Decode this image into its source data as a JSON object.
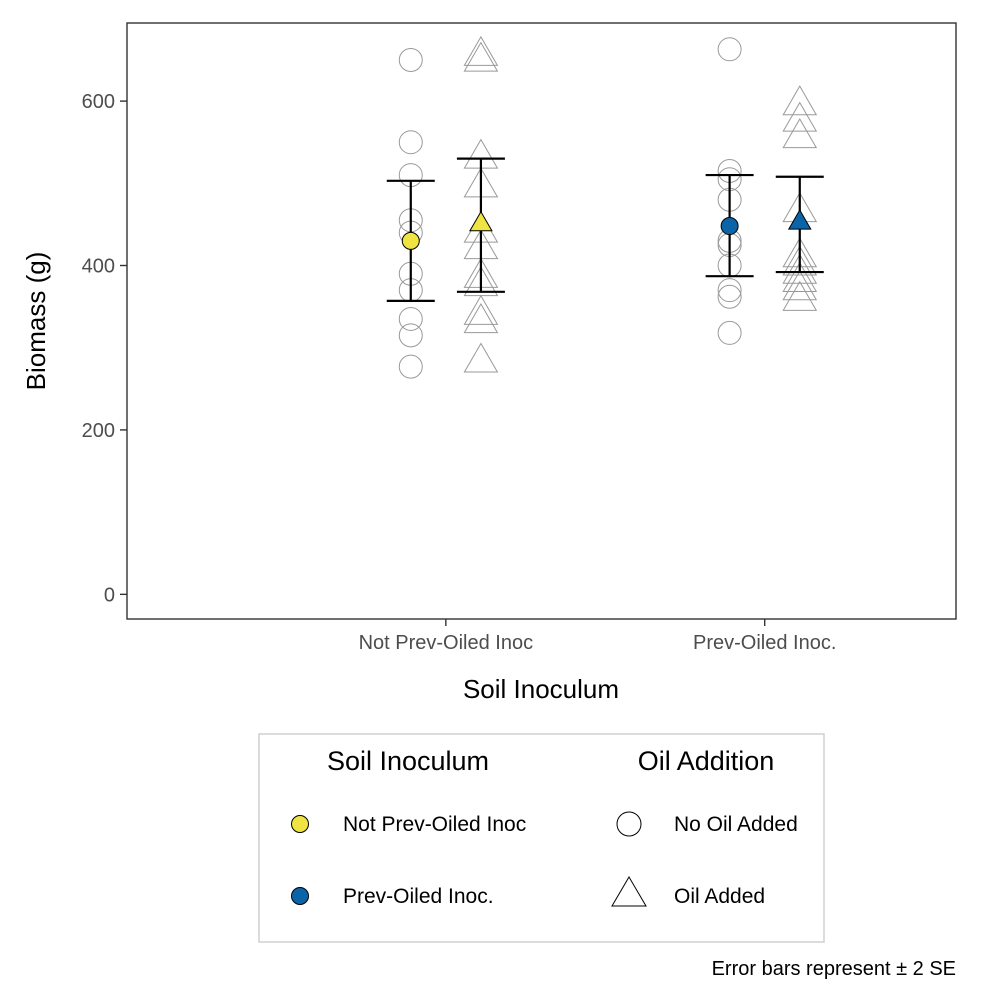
{
  "chart_data": {
    "type": "scatter",
    "xlabel": "Soil Inoculum",
    "ylabel": "Biomass (g)",
    "ylim": [
      -30,
      695
    ],
    "yticks": [
      0,
      200,
      400,
      600
    ],
    "categories": [
      "Not Prev-Oiled Inoc",
      "Prev-Oiled Inoc."
    ],
    "x_range": [
      0.0,
      2.6
    ],
    "group_offset": 0.11,
    "grid": false,
    "caption": "Error bars represent ± 2 SE",
    "colors": {
      "Not Prev-Oiled Inoc": "#f0e442",
      "Prev-Oiled Inoc.": "#0b64a8",
      "raw_points_stroke": "#999999",
      "error_bar": "#000000"
    },
    "raw_points": [
      {
        "category": "Not Prev-Oiled Inoc",
        "oil": "No Oil Added",
        "values": [
          650,
          550,
          510,
          455,
          440,
          390,
          370,
          335,
          315,
          277
        ]
      },
      {
        "category": "Not Prev-Oiled Inoc",
        "oil": "Oil Added",
        "values": [
          655,
          648,
          530,
          495,
          440,
          420,
          385,
          375,
          340,
          330,
          282
        ]
      },
      {
        "category": "Prev-Oiled Inoc.",
        "oil": "No Oil Added",
        "values": [
          663,
          515,
          505,
          480,
          430,
          425,
          400,
          370,
          362,
          318
        ]
      },
      {
        "category": "Prev-Oiled Inoc.",
        "oil": "Oil Added",
        "values": [
          595,
          575,
          555,
          465,
          410,
          400,
          390,
          380,
          370,
          357
        ]
      }
    ],
    "means": [
      {
        "category": "Not Prev-Oiled Inoc",
        "oil": "No Oil Added",
        "mean": 430,
        "lower": 357,
        "upper": 503
      },
      {
        "category": "Not Prev-Oiled Inoc",
        "oil": "Oil Added",
        "mean": 450,
        "lower": 368,
        "upper": 530
      },
      {
        "category": "Prev-Oiled Inoc.",
        "oil": "No Oil Added",
        "mean": 448,
        "lower": 387,
        "upper": 510
      },
      {
        "category": "Prev-Oiled Inoc.",
        "oil": "Oil Added",
        "mean": 452,
        "lower": 392,
        "upper": 508
      }
    ],
    "legend": {
      "position": "bottom",
      "soil": {
        "title": "Soil Inoculum",
        "items": [
          {
            "label": "Not Prev-Oiled Inoc",
            "color": "#f0e442"
          },
          {
            "label": "Prev-Oiled Inoc.",
            "color": "#0b64a8"
          }
        ]
      },
      "oil": {
        "title": "Oil Addition",
        "items": [
          {
            "label": "No Oil Added",
            "shape": "circle"
          },
          {
            "label": "Oil Added",
            "shape": "triangle"
          }
        ]
      }
    }
  }
}
